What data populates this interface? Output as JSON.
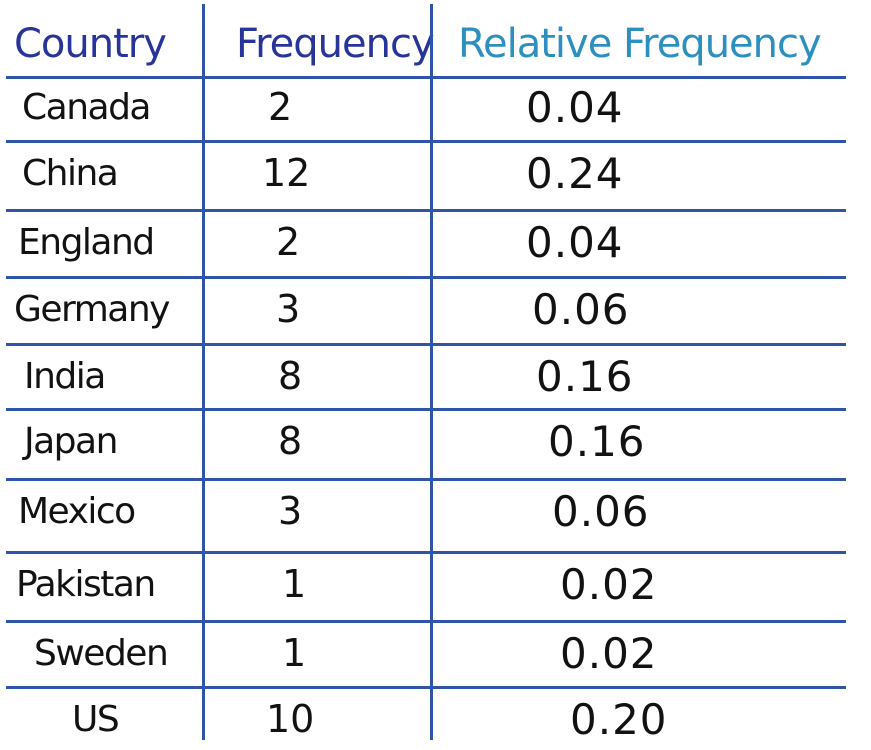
{
  "table": {
    "headers": {
      "country": "Country",
      "frequency": "Frequency",
      "relative_frequency": "Relative Frequency"
    },
    "header_colors": {
      "country": "#27349a",
      "frequency": "#27349a",
      "relative_frequency": "#2d8fbf"
    },
    "rule_color": "#2f55a8",
    "rows": [
      {
        "country": "Canada",
        "frequency": "2",
        "relative_frequency": "0.04"
      },
      {
        "country": "China",
        "frequency": "12",
        "relative_frequency": "0.24"
      },
      {
        "country": "England",
        "frequency": "2",
        "relative_frequency": "0.04"
      },
      {
        "country": "Germany",
        "frequency": "3",
        "relative_frequency": "0.06"
      },
      {
        "country": "India",
        "frequency": "8",
        "relative_frequency": "0.16"
      },
      {
        "country": "Japan",
        "frequency": "8",
        "relative_frequency": "0.16"
      },
      {
        "country": "Mexico",
        "frequency": "3",
        "relative_frequency": "0.06"
      },
      {
        "country": "Pakistan",
        "frequency": "1",
        "relative_frequency": "0.02"
      },
      {
        "country": "Sweden",
        "frequency": "1",
        "relative_frequency": "0.02"
      },
      {
        "country": "US",
        "frequency": "10",
        "relative_frequency": "0.20"
      }
    ]
  }
}
